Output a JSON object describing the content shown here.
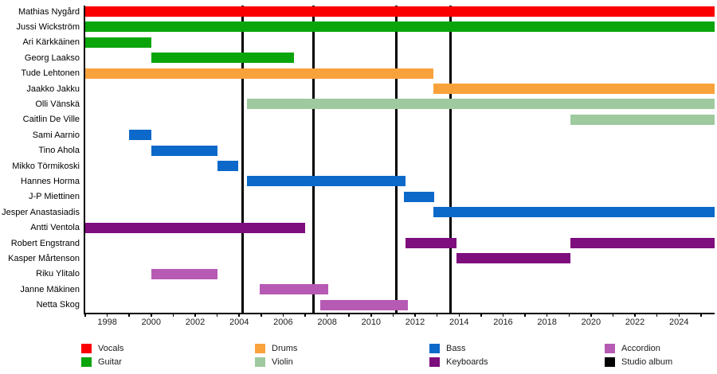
{
  "chart_data": {
    "type": "gantt",
    "title": "",
    "x_axis": {
      "year_min": 1997.0,
      "year_max": 2025.62,
      "labeled_ticks": [
        1998,
        2000,
        2002,
        2004,
        2006,
        2008,
        2010,
        2012,
        2014,
        2016,
        2018,
        2020,
        2022,
        2024
      ],
      "minor_tick_start": 1997,
      "minor_tick_end": 2025,
      "grid": false
    },
    "colors": {
      "Vocals": "#fa0000",
      "Guitar": "#0aa50a",
      "Drums": "#f9a23c",
      "Violin": "#9fc99f",
      "Bass": "#0c69c9",
      "Keyboards": "#7e0d7e",
      "Accordion": "#b65ab4",
      "Studio album": "#000000"
    },
    "members": [
      {
        "name": "Mathias Nygård",
        "instrument": "Vocals",
        "bars": [
          [
            1997.0,
            2025.62
          ]
        ]
      },
      {
        "name": "Jussi Wickström",
        "instrument": "Guitar",
        "bars": [
          [
            1997.0,
            2025.62
          ]
        ]
      },
      {
        "name": "Ari Kärkkäinen",
        "instrument": "Guitar",
        "bars": [
          [
            1997.0,
            2000.0
          ]
        ]
      },
      {
        "name": "Georg Laakso",
        "instrument": "Guitar",
        "bars": [
          [
            2000.0,
            2006.5
          ]
        ]
      },
      {
        "name": "Tude Lehtonen",
        "instrument": "Drums",
        "bars": [
          [
            1997.0,
            2012.83
          ]
        ]
      },
      {
        "name": "Jaakko Jakku",
        "instrument": "Drums",
        "bars": [
          [
            2012.83,
            2025.62
          ]
        ]
      },
      {
        "name": "Olli Vänskä",
        "instrument": "Violin",
        "bars": [
          [
            2004.35,
            2025.62
          ]
        ]
      },
      {
        "name": "Caitlin De Ville",
        "instrument": "Violin",
        "bars": [
          [
            2019.05,
            2025.62
          ]
        ]
      },
      {
        "name": "Sami Aarnio",
        "instrument": "Bass",
        "bars": [
          [
            1999.0,
            2000.0
          ]
        ]
      },
      {
        "name": "Tino Ahola",
        "instrument": "Bass",
        "bars": [
          [
            2000.0,
            2003.0
          ]
        ]
      },
      {
        "name": "Mikko Törmikoski",
        "instrument": "Bass",
        "bars": [
          [
            2003.0,
            2003.95
          ]
        ]
      },
      {
        "name": "Hannes Horma",
        "instrument": "Bass",
        "bars": [
          [
            2004.35,
            2011.55
          ]
        ]
      },
      {
        "name": "J-P Miettinen",
        "instrument": "Bass",
        "bars": [
          [
            2011.5,
            2012.87
          ]
        ]
      },
      {
        "name": "Jesper Anastasiadis",
        "instrument": "Bass",
        "bars": [
          [
            2012.83,
            2025.62
          ]
        ]
      },
      {
        "name": "Antti Ventola",
        "instrument": "Keyboards",
        "bars": [
          [
            1997.0,
            2007.0
          ]
        ]
      },
      {
        "name": "Robert Engstrand",
        "instrument": "Keyboards",
        "bars": [
          [
            2011.55,
            2013.9
          ],
          [
            2019.05,
            2025.62
          ]
        ]
      },
      {
        "name": "Kasper Mårtenson",
        "instrument": "Keyboards",
        "bars": [
          [
            2013.9,
            2019.05
          ]
        ]
      },
      {
        "name": "Riku Ylitalo",
        "instrument": "Accordion",
        "bars": [
          [
            2000.0,
            2003.0
          ]
        ]
      },
      {
        "name": "Janne Mäkinen",
        "instrument": "Accordion",
        "bars": [
          [
            2004.95,
            2008.05
          ]
        ]
      },
      {
        "name": "Netta Skog",
        "instrument": "Accordion",
        "bars": [
          [
            2007.7,
            2011.67
          ]
        ]
      }
    ],
    "albums": {
      "label": "Studio album",
      "years": [
        2004.17,
        2007.38,
        2011.15,
        2013.6
      ]
    },
    "legend": {
      "columns": [
        [
          "Vocals",
          "Guitar"
        ],
        [
          "Drums",
          "Violin"
        ],
        [
          "Bass",
          "Keyboards"
        ],
        [
          "Accordion",
          "Studio album"
        ]
      ],
      "position": "bottom"
    }
  }
}
